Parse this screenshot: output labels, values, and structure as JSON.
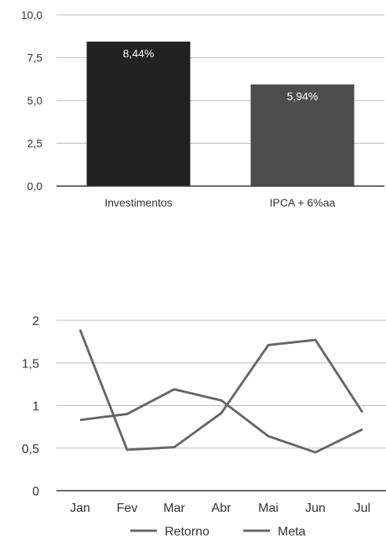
{
  "chart_data": [
    {
      "type": "bar",
      "categories": [
        "Investimentos",
        "IPCA + 6%aa"
      ],
      "values": [
        8.44,
        5.94
      ],
      "data_labels": [
        "8,44%",
        "5,94%"
      ],
      "bar_colors": [
        "#222222",
        "#4d4d4d"
      ],
      "ylim": [
        0,
        10
      ],
      "yticks": [
        "0,0",
        "2,5",
        "5,0",
        "7,5",
        "10,0"
      ],
      "grid": true
    },
    {
      "type": "line",
      "categories": [
        "Jan",
        "Fev",
        "Mar",
        "Abr",
        "Mai",
        "Jun",
        "Jul"
      ],
      "series": [
        {
          "name": "Retorno",
          "values": [
            1.89,
            0.48,
            0.51,
            0.91,
            1.71,
            1.77,
            0.92
          ],
          "color": "#666666"
        },
        {
          "name": "Meta",
          "values": [
            0.83,
            0.9,
            1.19,
            1.06,
            0.64,
            0.45,
            0.72
          ],
          "color": "#666666"
        }
      ],
      "ylim": [
        0,
        2
      ],
      "yticks": [
        "0",
        "0,5",
        "1",
        "1,5",
        "2"
      ],
      "grid": true,
      "legend_position": "bottom"
    }
  ]
}
